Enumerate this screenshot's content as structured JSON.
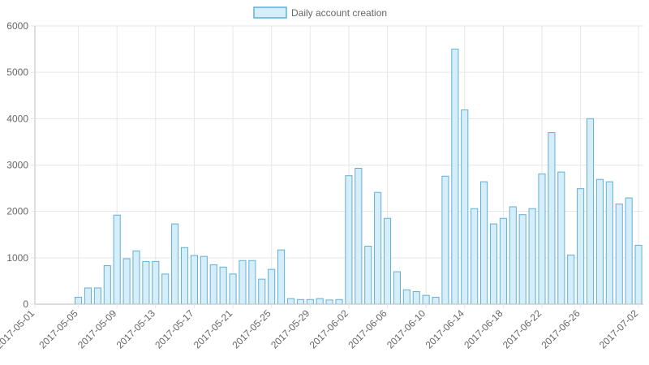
{
  "chart_data": {
    "type": "bar",
    "title": "",
    "xlabel": "",
    "ylabel": "",
    "legend": {
      "position": "top",
      "entries": [
        "Daily account creation"
      ]
    },
    "series": [
      {
        "name": "Daily account creation",
        "fill_color": "#d6eef9",
        "border_color": "#5fb0d8",
        "values": [
          0,
          0,
          0,
          0,
          150,
          350,
          350,
          830,
          1920,
          980,
          1150,
          920,
          920,
          650,
          1730,
          1220,
          1050,
          1030,
          850,
          800,
          650,
          940,
          940,
          540,
          750,
          1170,
          120,
          100,
          100,
          120,
          90,
          100,
          2770,
          2930,
          1250,
          2410,
          1850,
          700,
          310,
          270,
          190,
          150,
          2760,
          5500,
          4190,
          2060,
          2640,
          1730,
          1850,
          2100,
          1930,
          2060,
          2810,
          3700,
          2850,
          1060,
          2490,
          4000,
          2690,
          2640,
          2160,
          2290,
          1270
        ]
      }
    ],
    "x_start_date": "2017-05-01",
    "x_tick_labels": [
      "2017-05-01",
      "2017-05-05",
      "2017-05-09",
      "2017-05-13",
      "2017-05-17",
      "2017-05-21",
      "2017-05-25",
      "2017-05-29",
      "2017-06-02",
      "2017-06-06",
      "2017-06-10",
      "2017-06-14",
      "2017-06-18",
      "2017-06-22",
      "2017-06-26",
      "2017-07-02"
    ],
    "y_tick_labels": [
      "0",
      "1000",
      "2000",
      "3000",
      "4000",
      "5000",
      "6000"
    ],
    "ylim": [
      0,
      6000
    ],
    "y_step": 1000,
    "grid": true,
    "grid_color": "#e6e6e6",
    "axis_color": "#bbbbbb",
    "text_color": "#666666"
  }
}
